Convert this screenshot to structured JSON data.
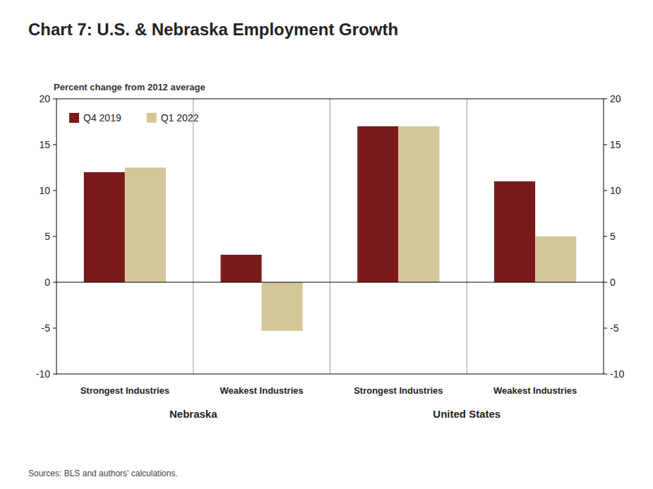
{
  "chart_data": {
    "type": "bar",
    "title": "Chart 7: U.S. & Nebraska Employment Growth",
    "y_label": "Percent change from 2012 average",
    "source": "Sources: BLS  and authors' calculations.",
    "annotations": [
      "Nebraska",
      "United States"
    ],
    "categories": [
      "Strongest Industries",
      "Weakest Industries",
      "Strongest Industries",
      "Weakest Industries"
    ],
    "series": [
      {
        "name": "Q4 2019",
        "color": "#7B1A1A",
        "values": [
          12.0,
          3.0,
          17.0,
          11.0
        ]
      },
      {
        "name": "Q1 2022",
        "color": "#D4C89A",
        "values": [
          12.5,
          -5.3,
          17.0,
          5.0
        ]
      }
    ],
    "ylim": [
      -10,
      20
    ],
    "yticks": [
      -10,
      -5,
      0,
      5,
      10,
      15,
      20
    ],
    "y2lim": [
      -10,
      20
    ],
    "y2ticks": [
      -10,
      -5,
      0,
      5,
      10,
      15,
      20
    ],
    "grid": false,
    "legend": "upper-left"
  }
}
